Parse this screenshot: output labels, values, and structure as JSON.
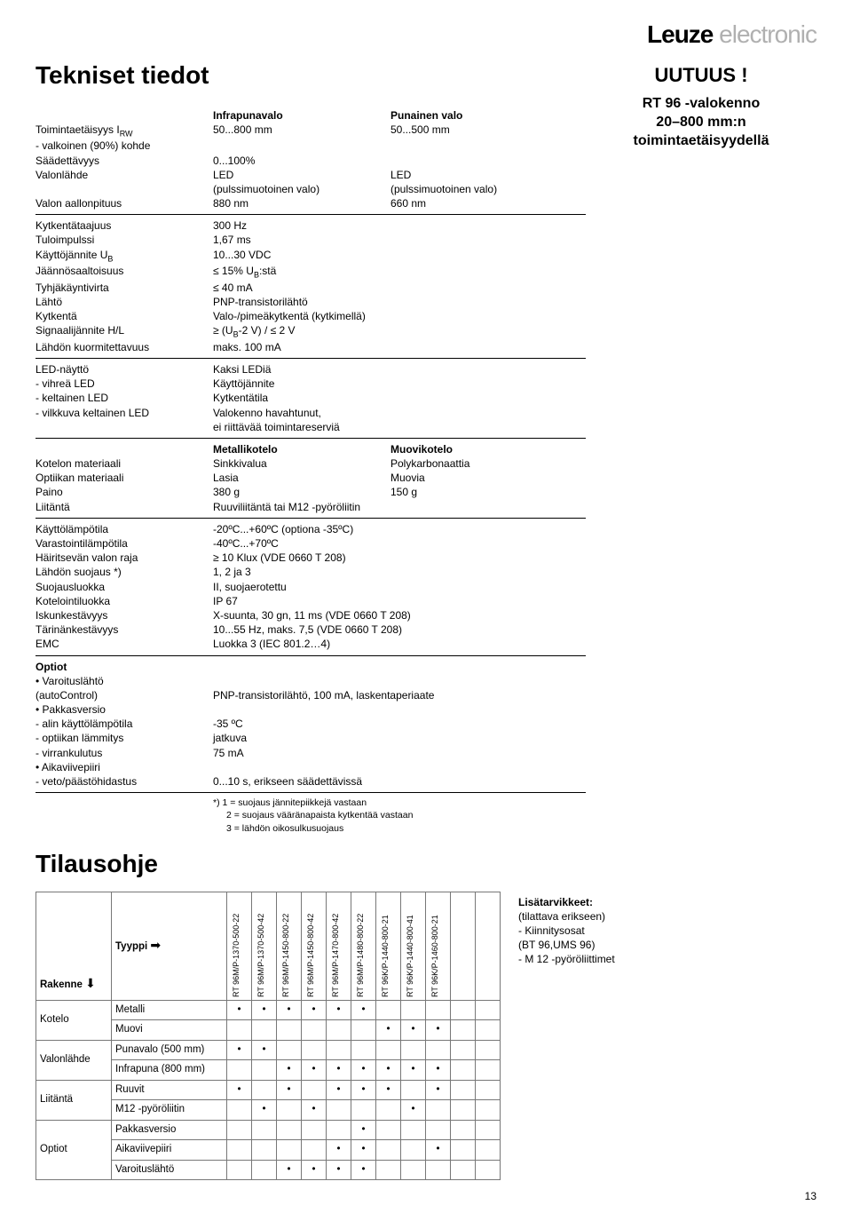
{
  "logo": {
    "bold": "Leuze",
    "light": " electronic"
  },
  "title": "Tekniset tiedot",
  "callout": {
    "heading": "UUTUUS !",
    "sub1": "RT 96 -valokenno",
    "sub2": "20–800 mm:n",
    "sub3": "toimintaetäisyydellä"
  },
  "block1": {
    "head_ir": "Infrapunavalo",
    "head_red": "Punainen valo",
    "range_label": "Toimintaetäisyys I",
    "range_sub": "RW",
    "range_ir": "50...800 mm",
    "range_red": "50...500 mm",
    "target": "- valkoinen (90%) kohde",
    "adj_label": "Säädettävyys",
    "adj_val": "0...100%",
    "src_label": "Valonlähde",
    "src_v": "LED",
    "src_note": "(pulssimuotoinen valo)",
    "wave_label": "Valon aallonpituus",
    "wave_ir": "880 nm",
    "wave_red": "660 nm"
  },
  "block2": {
    "freq_l": "Kytkentätaajuus",
    "freq_v": "300 Hz",
    "pulse_l": "Tuloimpulssi",
    "pulse_v": "1,67 ms",
    "volt_l": "Käyttöjännite U",
    "volt_sub": "B",
    "volt_v": "10...30 VDC",
    "ripple_l": "Jäännösaaltoisuus",
    "ripple_v": "≤ 15% U",
    "ripple_sub": "B",
    "ripple_suf": ":stä",
    "idle_l": "Tyhjäkäyntivirta",
    "idle_v": "≤ 40 mA",
    "out_l": "Lähtö",
    "out_v": "PNP-transistorilähtö",
    "sw_l": "Kytkentä",
    "sw_v": "Valo-/pimeäkytkentä (kytkimellä)",
    "sig_l": "Signaalijännite H/L",
    "sig_v1": "≥ (U",
    "sig_sub": "B",
    "sig_v2": "-2 V) / ≤ 2 V",
    "load_l": "Lähdön kuormitettavuus",
    "load_v": "maks. 100 mA"
  },
  "block3": {
    "led_l": "LED-näyttö",
    "led_v": "Kaksi LEDiä",
    "green_l": "- vihreä LED",
    "green_v": "Käyttöjännite",
    "yel_l": "- keltainen LED",
    "yel_v": "Kytkentätila",
    "blink_l": "- vilkkuva keltainen LED",
    "blink_v": "Valokenno havahtunut,",
    "blink_v2": "ei riittävää toimintareserviä"
  },
  "block4": {
    "head_m": "Metallikotelo",
    "head_p": "Muovikotelo",
    "house_l": "Kotelon materiaali",
    "house_m": "Sinkkivalua",
    "house_p": "Polykarbonaattia",
    "opt_l": "Optiikan materiaali",
    "opt_m": "Lasia",
    "opt_p": "Muovia",
    "wt_l": "Paino",
    "wt_m": "380 g",
    "wt_p": "150 g",
    "conn_l": "Liitäntä",
    "conn_v": "Ruuviliitäntä tai M12 -pyöröliitin"
  },
  "block5": {
    "optemp_l": "Käyttölämpötila",
    "optemp_v": "-20ºC...+60ºC (optiona -35ºC)",
    "sttemp_l": "Varastointilämpötila",
    "sttemp_v": "-40ºC...+70ºC",
    "amb_l": "Häiritsevän valon raja",
    "amb_v": "≥ 10 Klux (VDE 0660 T 208)",
    "prot_l": "Lähdön suojaus *)",
    "prot_v": "1, 2 ja 3",
    "class_l": "Suojausluokka",
    "class_v": "II, suojaerotettu",
    "ip_l": "Kotelointiluokka",
    "ip_v": "IP 67",
    "shock_l": "Iskunkestävyys",
    "shock_v": "X-suunta, 30 gn, 11 ms (VDE 0660 T 208)",
    "vib_l": "Tärinänkestävyys",
    "vib_v": "10...55 Hz, maks. 7,5 (VDE 0660 T 208)",
    "emc_l": "EMC",
    "emc_v": "Luokka 3 (IEC 801.2…4)"
  },
  "block6": {
    "opt_h": "Optiot",
    "warn_l": "Varoituslähtö",
    "warn_sub": "(autoControl)",
    "warn_v": "PNP-transistorilähtö, 100 mA, laskentaperiaate",
    "frost_l": "Pakkasversio",
    "frost_a_l": "-  alin käyttölämpötila",
    "frost_a_v": "-35 ºC",
    "frost_b_l": "-  optiikan lämmitys",
    "frost_b_v": "jatkuva",
    "frost_c_l": "-  virrankulutus",
    "frost_c_v": "75 mA",
    "timer_l": "Aikaviivepiiri",
    "timer_sub_l": "-  veto/päästöhidastus",
    "timer_sub_v": "0...10 s, erikseen säädettävissä"
  },
  "footnote": {
    "l1": "*)  1 = suojaus jännitepiikkejä vastaan",
    "l2": "2 = suojaus vääränapaista kytkentää vastaan",
    "l3": "3 = lähdön oikosulkusuojaus"
  },
  "order_title": "Tilausohje",
  "order": {
    "corner1": "Rakenne",
    "corner2": "Tyyppi",
    "type_cols": [
      "RT 96M/P-1370-500-22",
      "RT 96M/P-1370-500-42",
      "RT 96M/P-1450-800-22",
      "RT 96M/P-1450-800-42",
      "RT 96M/P-1470-800-42",
      "RT 96M/P-1480-800-22",
      "RT 96K/P-1440-800-21",
      "RT 96K/P-1440-800-41",
      "RT 96K/P-1460-800-21"
    ],
    "rows": [
      {
        "cat": "Kotelo",
        "label": "Metalli",
        "dots": [
          1,
          1,
          1,
          1,
          1,
          1,
          0,
          0,
          0
        ]
      },
      {
        "cat": "",
        "label": "Muovi",
        "dots": [
          0,
          0,
          0,
          0,
          0,
          0,
          1,
          1,
          1
        ]
      },
      {
        "cat": "Valonlähde",
        "label": "Punavalo (500 mm)",
        "dots": [
          1,
          1,
          0,
          0,
          0,
          0,
          0,
          0,
          0
        ]
      },
      {
        "cat": "",
        "label": "Infrapuna (800 mm)",
        "dots": [
          0,
          0,
          1,
          1,
          1,
          1,
          1,
          1,
          1
        ]
      },
      {
        "cat": "Liitäntä",
        "label": "Ruuvit",
        "dots": [
          1,
          0,
          1,
          0,
          1,
          1,
          1,
          0,
          1
        ]
      },
      {
        "cat": "",
        "label": "M12 -pyöröliitin",
        "dots": [
          0,
          1,
          0,
          1,
          0,
          0,
          0,
          1,
          0
        ]
      },
      {
        "cat": "Optiot",
        "label": "Pakkasversio",
        "dots": [
          0,
          0,
          0,
          0,
          0,
          1,
          0,
          0,
          0
        ]
      },
      {
        "cat": "",
        "label": "Aikaviivepiiri",
        "dots": [
          0,
          0,
          0,
          0,
          1,
          1,
          0,
          0,
          1
        ]
      },
      {
        "cat": "",
        "label": "Varoituslähtö",
        "dots": [
          0,
          0,
          1,
          1,
          1,
          1,
          0,
          0,
          0
        ]
      }
    ]
  },
  "side": {
    "h": "Lisätarvikkeet:",
    "l1": "(tilattava erikseen)",
    "l2": "- Kiinnitysosat",
    "l3": "  (BT 96,UMS 96)",
    "l4": "- M 12 -pyöröliittimet"
  },
  "page": "13"
}
